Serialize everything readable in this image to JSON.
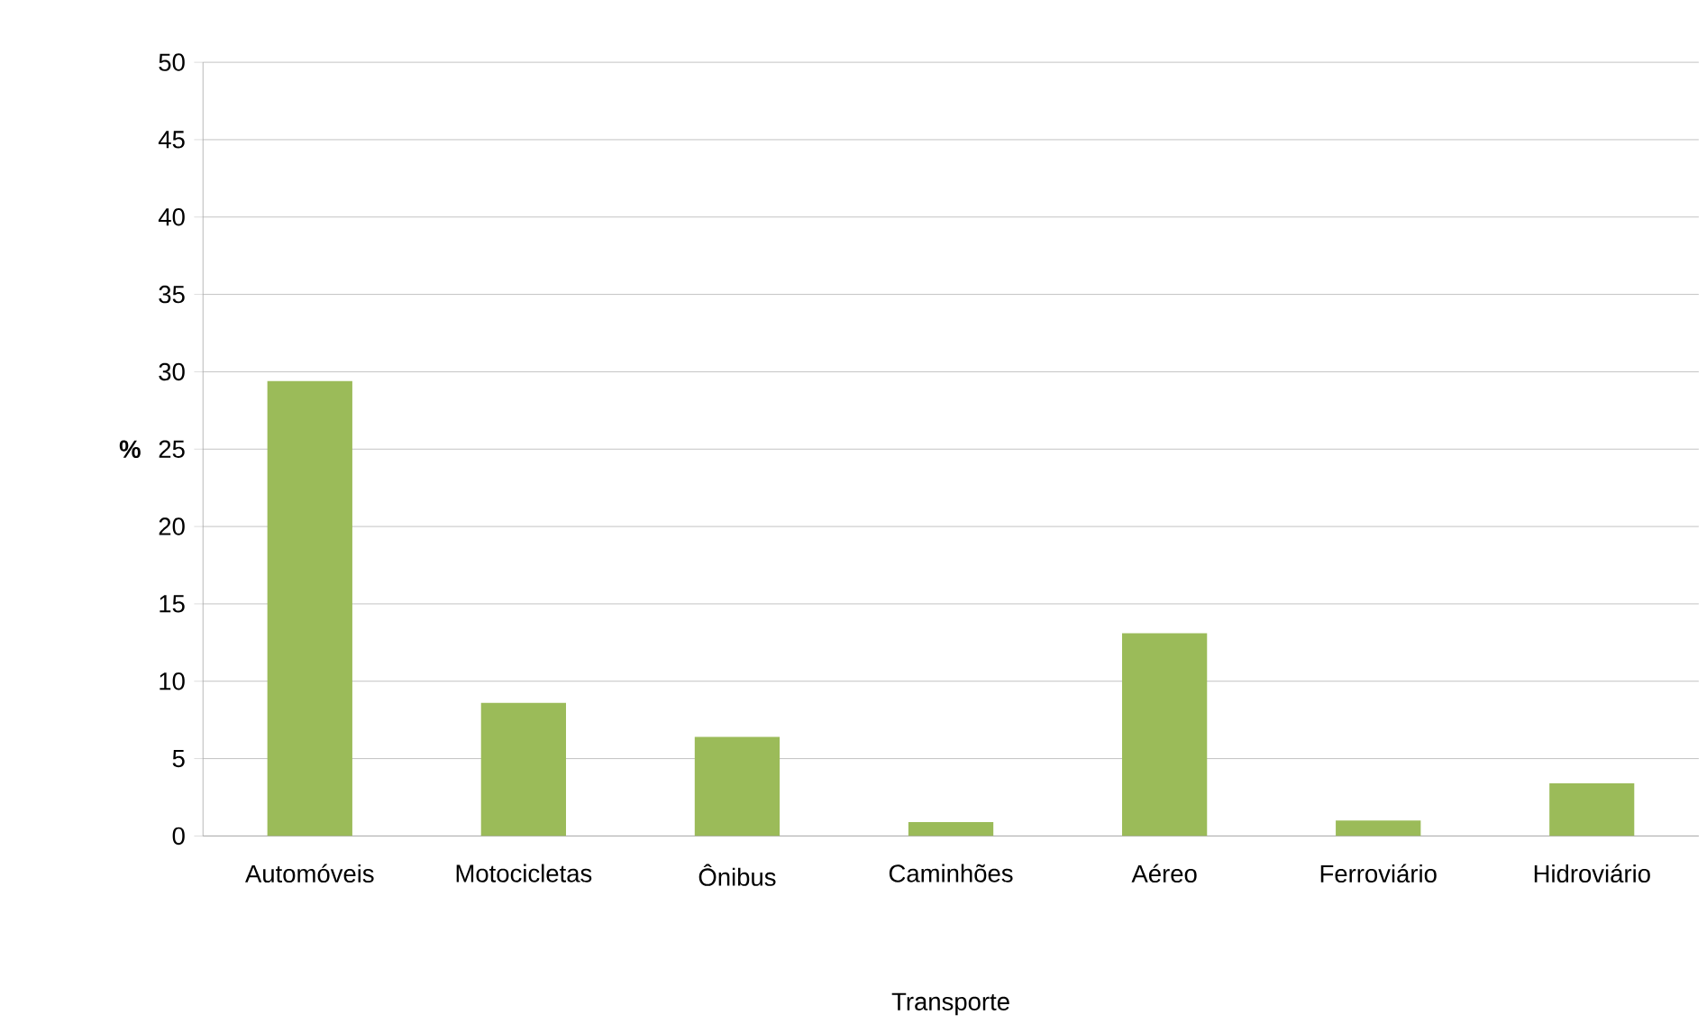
{
  "chart_data": {
    "type": "bar",
    "xlabel": "Transporte",
    "ylabel": "%",
    "categories": [
      "Automóveis",
      "Motocicletas",
      "Ônibus",
      "Caminhões",
      "Aéreo",
      "Ferroviário",
      "Hidroviário"
    ],
    "values": [
      29.4,
      8.6,
      6.4,
      0.9,
      13.1,
      1.0,
      3.4
    ],
    "color": "#9bbb59",
    "ylim": [
      0,
      50
    ],
    "yticks": [
      0,
      5,
      10,
      15,
      20,
      25,
      30,
      35,
      40,
      45,
      50
    ],
    "grid": "y"
  }
}
